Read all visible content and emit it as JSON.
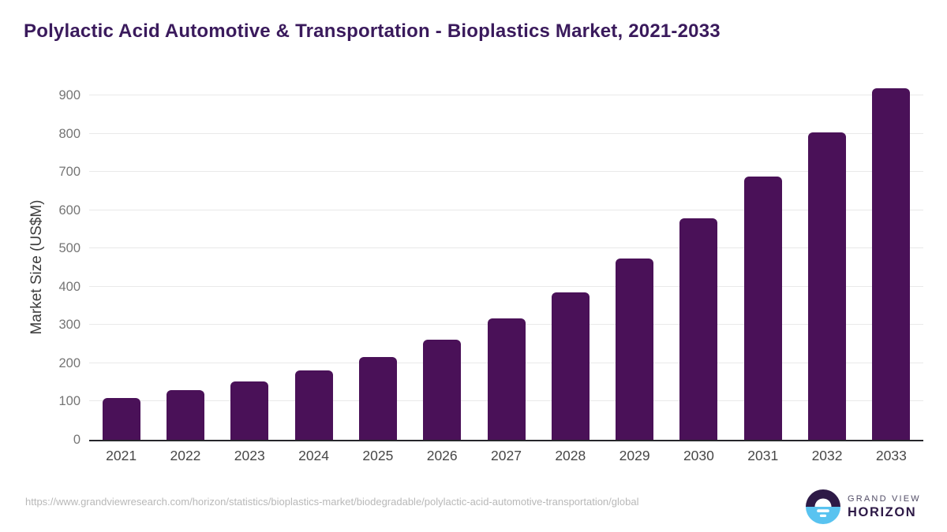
{
  "title": "Polylactic Acid Automotive & Transportation - Bioplastics Market, 2021-2033",
  "chart_data": {
    "type": "bar",
    "categories": [
      "2021",
      "2022",
      "2023",
      "2024",
      "2025",
      "2026",
      "2027",
      "2028",
      "2029",
      "2030",
      "2031",
      "2032",
      "2033"
    ],
    "values": [
      110,
      130,
      152,
      182,
      217,
      261,
      317,
      385,
      473,
      579,
      688,
      803,
      919
    ],
    "title": "Polylactic Acid Automotive & Transportation - Bioplastics Market, 2021-2033",
    "xlabel": "",
    "ylabel": "Market Size (US$M)",
    "ylim": [
      0,
      900
    ],
    "yticks": [
      0,
      100,
      200,
      300,
      400,
      500,
      600,
      700,
      800,
      900
    ],
    "grid": "horizontal-only",
    "legend": "none"
  },
  "colors": {
    "bar": "#4a1158",
    "title": "#3a1a5c",
    "grid": "#e9e9e9",
    "axis": "#26262b",
    "ytick": "#757575",
    "xtick": "#474747",
    "ylabel": "#3d3d3d",
    "url": "#b8b8b8",
    "logo_purple": "#2e1a47",
    "logo_blue": "#59c3f0",
    "logo_gray": "#514c66"
  },
  "footer": {
    "source_url": "https://www.grandviewresearch.com/horizon/statistics/bioplastics-market/biodegradable/polylactic-acid-automotive-transportation/global",
    "brand_line1": "GRAND VIEW",
    "brand_line2": "HORIZON"
  }
}
